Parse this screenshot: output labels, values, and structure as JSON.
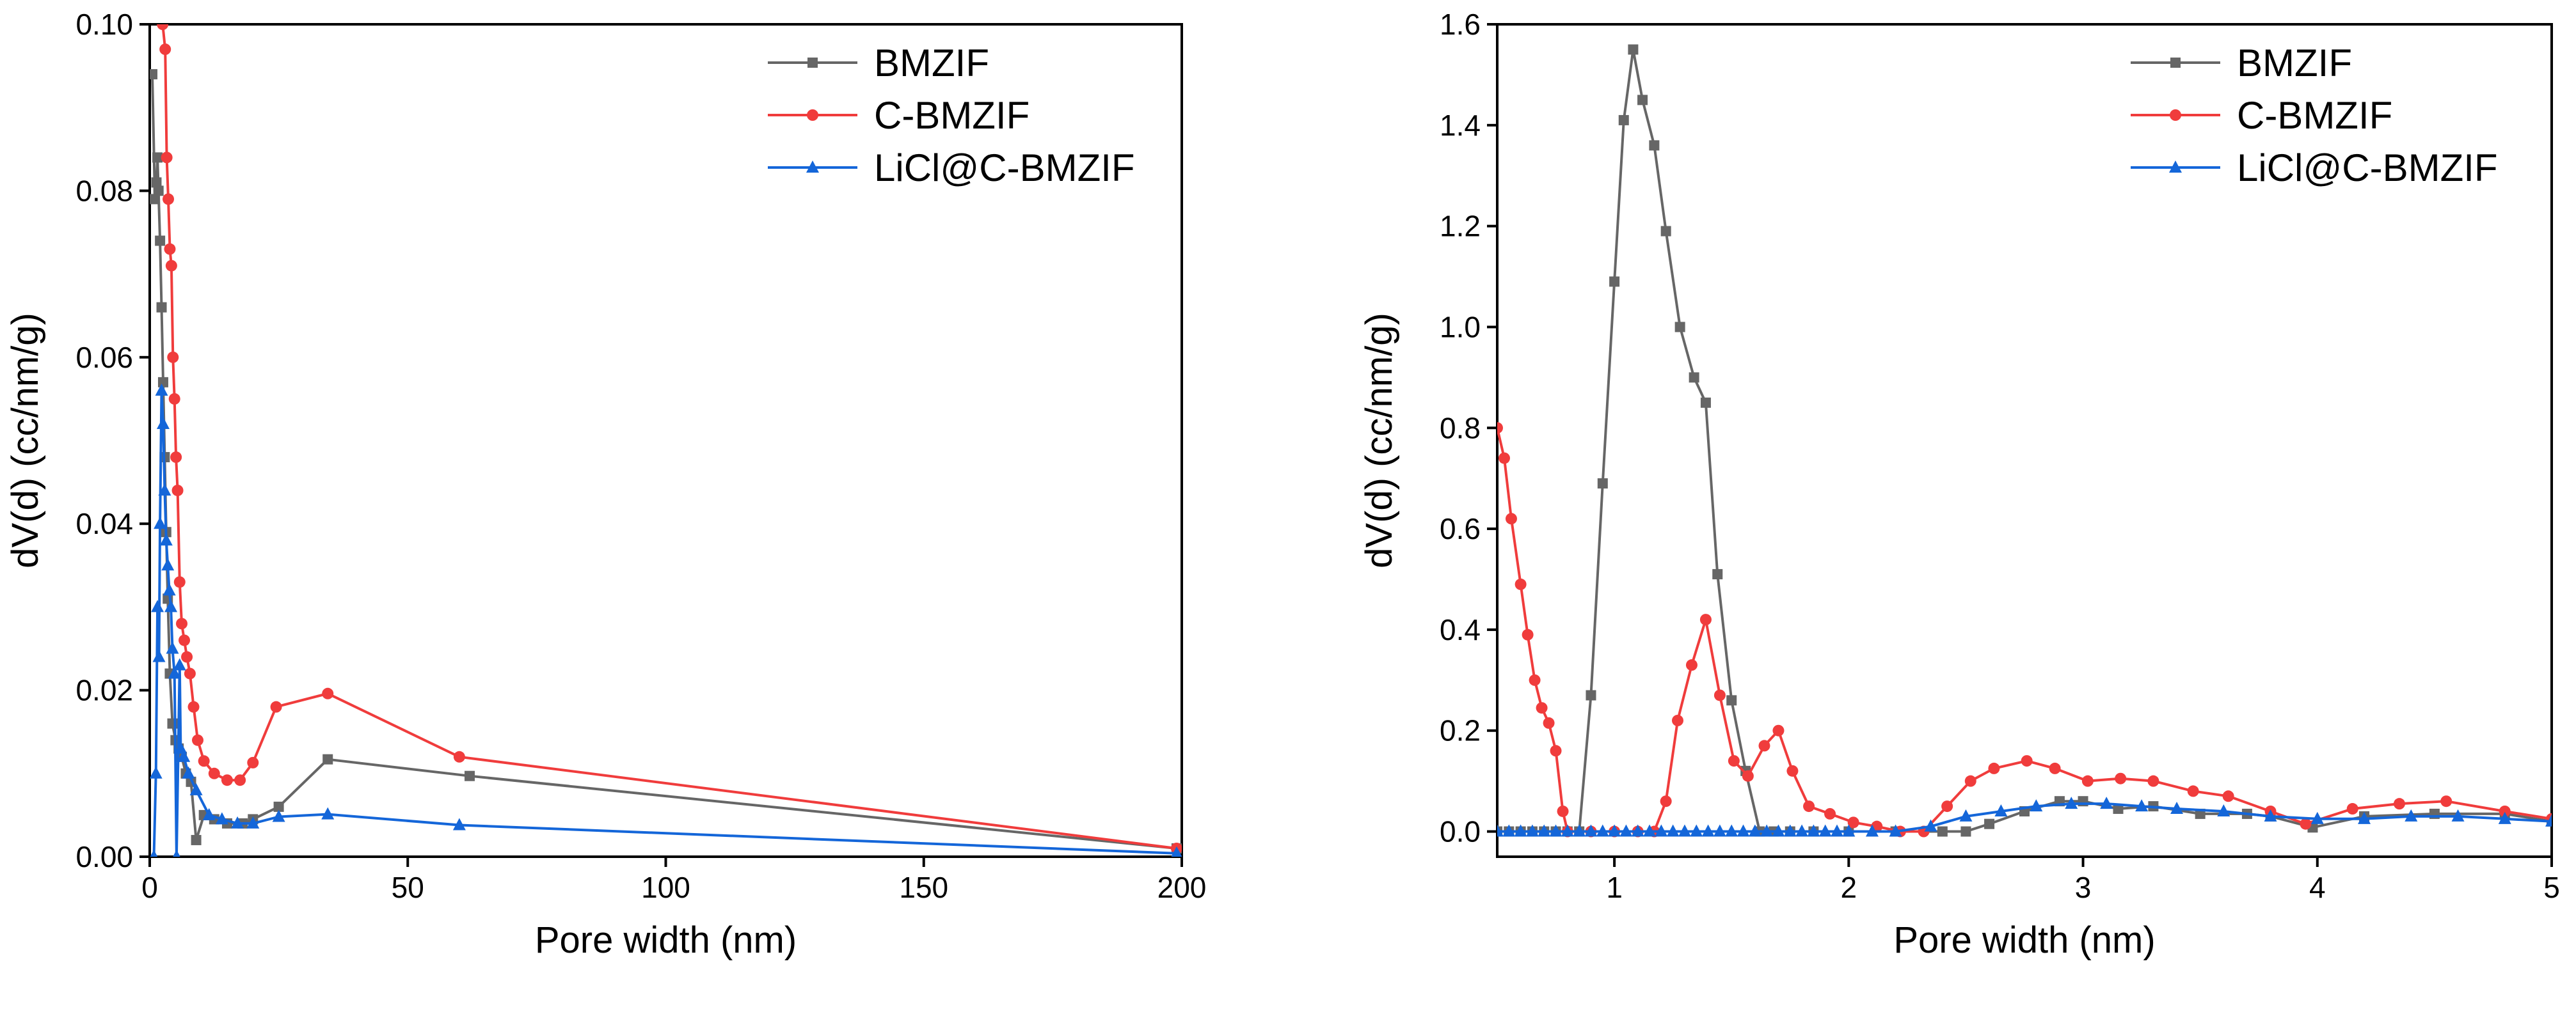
{
  "colors": {
    "BMZIF": "#666666",
    "C-BMZIF": "#f03c3c",
    "LiCl@C-BMZIF": "#1466d9"
  },
  "chart_data": [
    {
      "type": "line",
      "title": "",
      "xlabel": "Pore width (nm)",
      "ylabel": "dV(d) (cc/nm/g)",
      "xlim": [
        0,
        200
      ],
      "ylim": [
        0,
        0.1
      ],
      "xticks": [
        0,
        50,
        100,
        150,
        200
      ],
      "xtick_labels": [
        "0",
        "50",
        "100",
        "150",
        "200"
      ],
      "yticks": [
        0,
        0.02,
        0.04,
        0.06,
        0.08,
        0.1
      ],
      "ytick_labels": [
        "0.00",
        "0.02",
        "0.04",
        "0.06",
        "0.08",
        "0.10"
      ],
      "legend_position": "top-right",
      "series": [
        {
          "name": "BMZIF",
          "marker": "square",
          "x": [
            0.5,
            1.0,
            1.3,
            1.5,
            1.7,
            2.0,
            2.3,
            2.6,
            2.9,
            3.2,
            3.5,
            3.9,
            4.4,
            5.0,
            5.6,
            6.2,
            7.0,
            8.0,
            9.0,
            10.5,
            12.5,
            15,
            18,
            20,
            25,
            34.5,
            62,
            199
          ],
          "y": [
            0.094,
            0.079,
            0.081,
            0.084,
            0.08,
            0.074,
            0.066,
            0.057,
            0.048,
            0.039,
            0.031,
            0.022,
            0.016,
            0.014,
            0.013,
            0.012,
            0.01,
            0.009,
            0.002,
            0.005,
            0.0045,
            0.004,
            0.004,
            0.0045,
            0.006,
            0.0117,
            0.0097,
            0.001
          ]
        },
        {
          "name": "C-BMZIF",
          "marker": "circle",
          "x": [
            2.5,
            3.0,
            3.3,
            3.6,
            3.9,
            4.2,
            4.5,
            4.8,
            5.1,
            5.4,
            5.8,
            6.2,
            6.7,
            7.2,
            7.8,
            8.5,
            9.3,
            10.5,
            12.5,
            15,
            17.5,
            20,
            24.5,
            34.5,
            60,
            199
          ],
          "y": [
            0.1,
            0.097,
            0.084,
            0.079,
            0.073,
            0.071,
            0.06,
            0.055,
            0.048,
            0.044,
            0.033,
            0.028,
            0.026,
            0.024,
            0.022,
            0.018,
            0.014,
            0.0115,
            0.01,
            0.0092,
            0.0092,
            0.0113,
            0.018,
            0.0196,
            0.012,
            0.001
          ]
        },
        {
          "name": "LiCl@C-BMZIF",
          "marker": "triangle",
          "x": [
            0.8,
            1.2,
            1.5,
            1.8,
            2.0,
            2.3,
            2.6,
            2.9,
            3.2,
            3.5,
            3.8,
            4.1,
            4.4,
            4.8,
            5.2,
            5.8,
            6.0,
            6.6,
            7.5,
            9.0,
            11.5,
            14,
            17,
            20,
            25,
            34.5,
            60,
            199
          ],
          "y": [
            0.0,
            0.01,
            0.03,
            0.024,
            0.04,
            0.056,
            0.052,
            0.044,
            0.038,
            0.035,
            0.032,
            0.03,
            0.025,
            0.022,
            0.0,
            0.023,
            0.013,
            0.012,
            0.01,
            0.008,
            0.005,
            0.0045,
            0.004,
            0.004,
            0.0048,
            0.0051,
            0.0038,
            0.0004
          ]
        }
      ]
    },
    {
      "type": "line",
      "title": "",
      "xlabel": "Pore width (nm)",
      "ylabel": "dV(d) (cc/nm/g)",
      "xlim": [
        0.5,
        5
      ],
      "ylim": [
        -0.05,
        1.6
      ],
      "xticks": [
        1,
        2,
        3,
        4,
        5
      ],
      "xtick_labels": [
        "1",
        "2",
        "3",
        "4",
        "5"
      ],
      "yticks": [
        0,
        0.2,
        0.4,
        0.6,
        0.8,
        1.0,
        1.2,
        1.4,
        1.6
      ],
      "ytick_labels": [
        "0.0",
        "0.2",
        "0.4",
        "0.6",
        "0.8",
        "1.0",
        "1.2",
        "1.4",
        "1.6"
      ],
      "legend_position": "top-right",
      "series": [
        {
          "name": "BMZIF",
          "marker": "square",
          "x": [
            0.5,
            0.55,
            0.6,
            0.65,
            0.7,
            0.75,
            0.8,
            0.85,
            0.9,
            0.95,
            1.0,
            1.04,
            1.08,
            1.12,
            1.17,
            1.22,
            1.28,
            1.34,
            1.39,
            1.44,
            1.5,
            1.56,
            1.62,
            1.68,
            1.75,
            1.85,
            2.0,
            2.2,
            2.4,
            2.5,
            2.6,
            2.75,
            2.9,
            3.0,
            3.15,
            3.3,
            3.5,
            3.7,
            3.8,
            3.98,
            4.2,
            4.5,
            4.8,
            5.0
          ],
          "y": [
            0,
            0,
            0,
            0,
            0,
            0,
            0,
            0,
            0.27,
            0.69,
            1.09,
            1.41,
            1.55,
            1.45,
            1.36,
            1.19,
            1.0,
            0.9,
            0.85,
            0.51,
            0.26,
            0.12,
            0.0,
            0,
            0,
            0,
            0,
            0,
            0,
            0,
            0.015,
            0.04,
            0.06,
            0.06,
            0.045,
            0.05,
            0.035,
            0.035,
            0.03,
            0.008,
            0.03,
            0.035,
            0.035,
            0.02
          ]
        },
        {
          "name": "C-BMZIF",
          "marker": "circle",
          "x": [
            0.5,
            0.53,
            0.56,
            0.6,
            0.63,
            0.66,
            0.69,
            0.72,
            0.75,
            0.78,
            0.8,
            0.9,
            1.0,
            1.1,
            1.17,
            1.22,
            1.27,
            1.33,
            1.39,
            1.45,
            1.51,
            1.57,
            1.64,
            1.7,
            1.76,
            1.83,
            1.92,
            2.02,
            2.12,
            2.22,
            2.32,
            2.42,
            2.52,
            2.62,
            2.76,
            2.88,
            3.02,
            3.16,
            3.3,
            3.47,
            3.62,
            3.8,
            3.95,
            4.15,
            4.35,
            4.55,
            4.8,
            5.0
          ],
          "y": [
            0.8,
            0.74,
            0.62,
            0.49,
            0.39,
            0.3,
            0.245,
            0.215,
            0.16,
            0.04,
            0.0,
            0,
            0,
            0,
            0,
            0.06,
            0.22,
            0.33,
            0.42,
            0.27,
            0.14,
            0.11,
            0.17,
            0.2,
            0.12,
            0.05,
            0.035,
            0.018,
            0.01,
            0.0,
            0.0,
            0.05,
            0.1,
            0.125,
            0.14,
            0.125,
            0.1,
            0.105,
            0.1,
            0.08,
            0.07,
            0.04,
            0.015,
            0.045,
            0.055,
            0.06,
            0.04,
            0.025
          ]
        },
        {
          "name": "LiCl@C-BMZIF",
          "marker": "triangle",
          "x": [
            0.5,
            0.55,
            0.6,
            0.65,
            0.7,
            0.75,
            0.8,
            0.85,
            0.9,
            0.95,
            1.0,
            1.05,
            1.1,
            1.15,
            1.2,
            1.25,
            1.3,
            1.35,
            1.4,
            1.45,
            1.5,
            1.55,
            1.6,
            1.65,
            1.7,
            1.75,
            1.8,
            1.85,
            1.9,
            1.95,
            2.0,
            2.1,
            2.2,
            2.35,
            2.5,
            2.65,
            2.8,
            2.95,
            3.1,
            3.25,
            3.4,
            3.6,
            3.8,
            4.0,
            4.2,
            4.4,
            4.6,
            4.8,
            5.0
          ],
          "y": [
            0,
            0,
            0,
            0,
            0,
            0,
            0,
            0,
            0,
            0,
            0,
            0,
            0,
            0,
            0,
            0,
            0,
            0,
            0,
            0,
            0,
            0,
            0,
            0,
            0,
            0,
            0,
            0,
            0,
            0,
            0,
            0,
            0,
            0.01,
            0.03,
            0.04,
            0.05,
            0.055,
            0.055,
            0.05,
            0.045,
            0.04,
            0.03,
            0.025,
            0.025,
            0.03,
            0.03,
            0.025,
            0.02
          ]
        }
      ]
    }
  ]
}
